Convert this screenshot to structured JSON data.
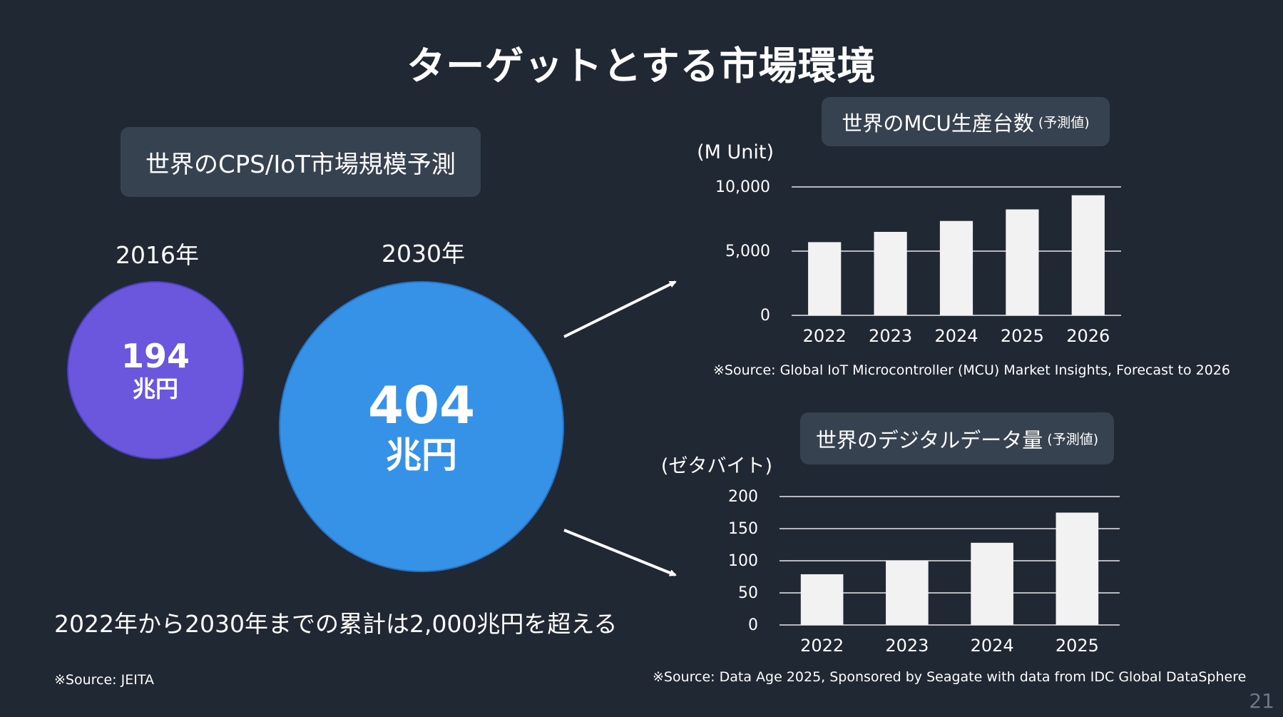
{
  "title": "ターゲットとする市場環境",
  "cps": {
    "heading": "世界のCPS/IoT市場規模予測",
    "year_2016_label": "2016年",
    "year_2030_label": "2030年",
    "value_2016": "194",
    "value_2030": "404",
    "unit": "兆円",
    "cumulative_note": "2022年から2030年までの累計は2,000兆円を超える",
    "source": "※Source: JEITA"
  },
  "mcu": {
    "heading": "世界のMCU生産台数",
    "heading_sub": "(予測値)",
    "source": "※Source: Global IoT Microcontroller (MCU) Market Insights, Forecast to 2026"
  },
  "datasphere": {
    "heading": "世界のデジタルデータ量",
    "heading_sub": "(予測値)",
    "source": "※Source: Data Age 2025, Sponsored by Seagate with data from IDC Global DataSphere"
  },
  "page_number": "21",
  "colors": {
    "background": "#202833",
    "bar": "#f2f2f2",
    "circle_2016": "#6a57de",
    "circle_2030": "#3692e6",
    "pill": "#364250"
  },
  "chart_data": [
    {
      "type": "bar",
      "categories": [
        "2022",
        "2023",
        "2024",
        "2025",
        "2026"
      ],
      "values": [
        5700,
        6500,
        7350,
        8250,
        9350
      ],
      "ylabel": "(M Unit)",
      "yticks": [
        "0",
        "5,000",
        "10,000"
      ],
      "ytick_values": [
        0,
        5000,
        10000
      ],
      "ylim": [
        0,
        10000
      ],
      "grid": true
    },
    {
      "type": "bar",
      "categories": [
        "2022",
        "2023",
        "2024",
        "2025"
      ],
      "values": [
        79,
        100,
        128,
        175
      ],
      "ylabel": "(ゼタバイト)",
      "yticks": [
        "0",
        "50",
        "100",
        "150",
        "200"
      ],
      "ytick_values": [
        0,
        50,
        100,
        150,
        200
      ],
      "ylim": [
        0,
        200
      ],
      "grid": true
    }
  ]
}
